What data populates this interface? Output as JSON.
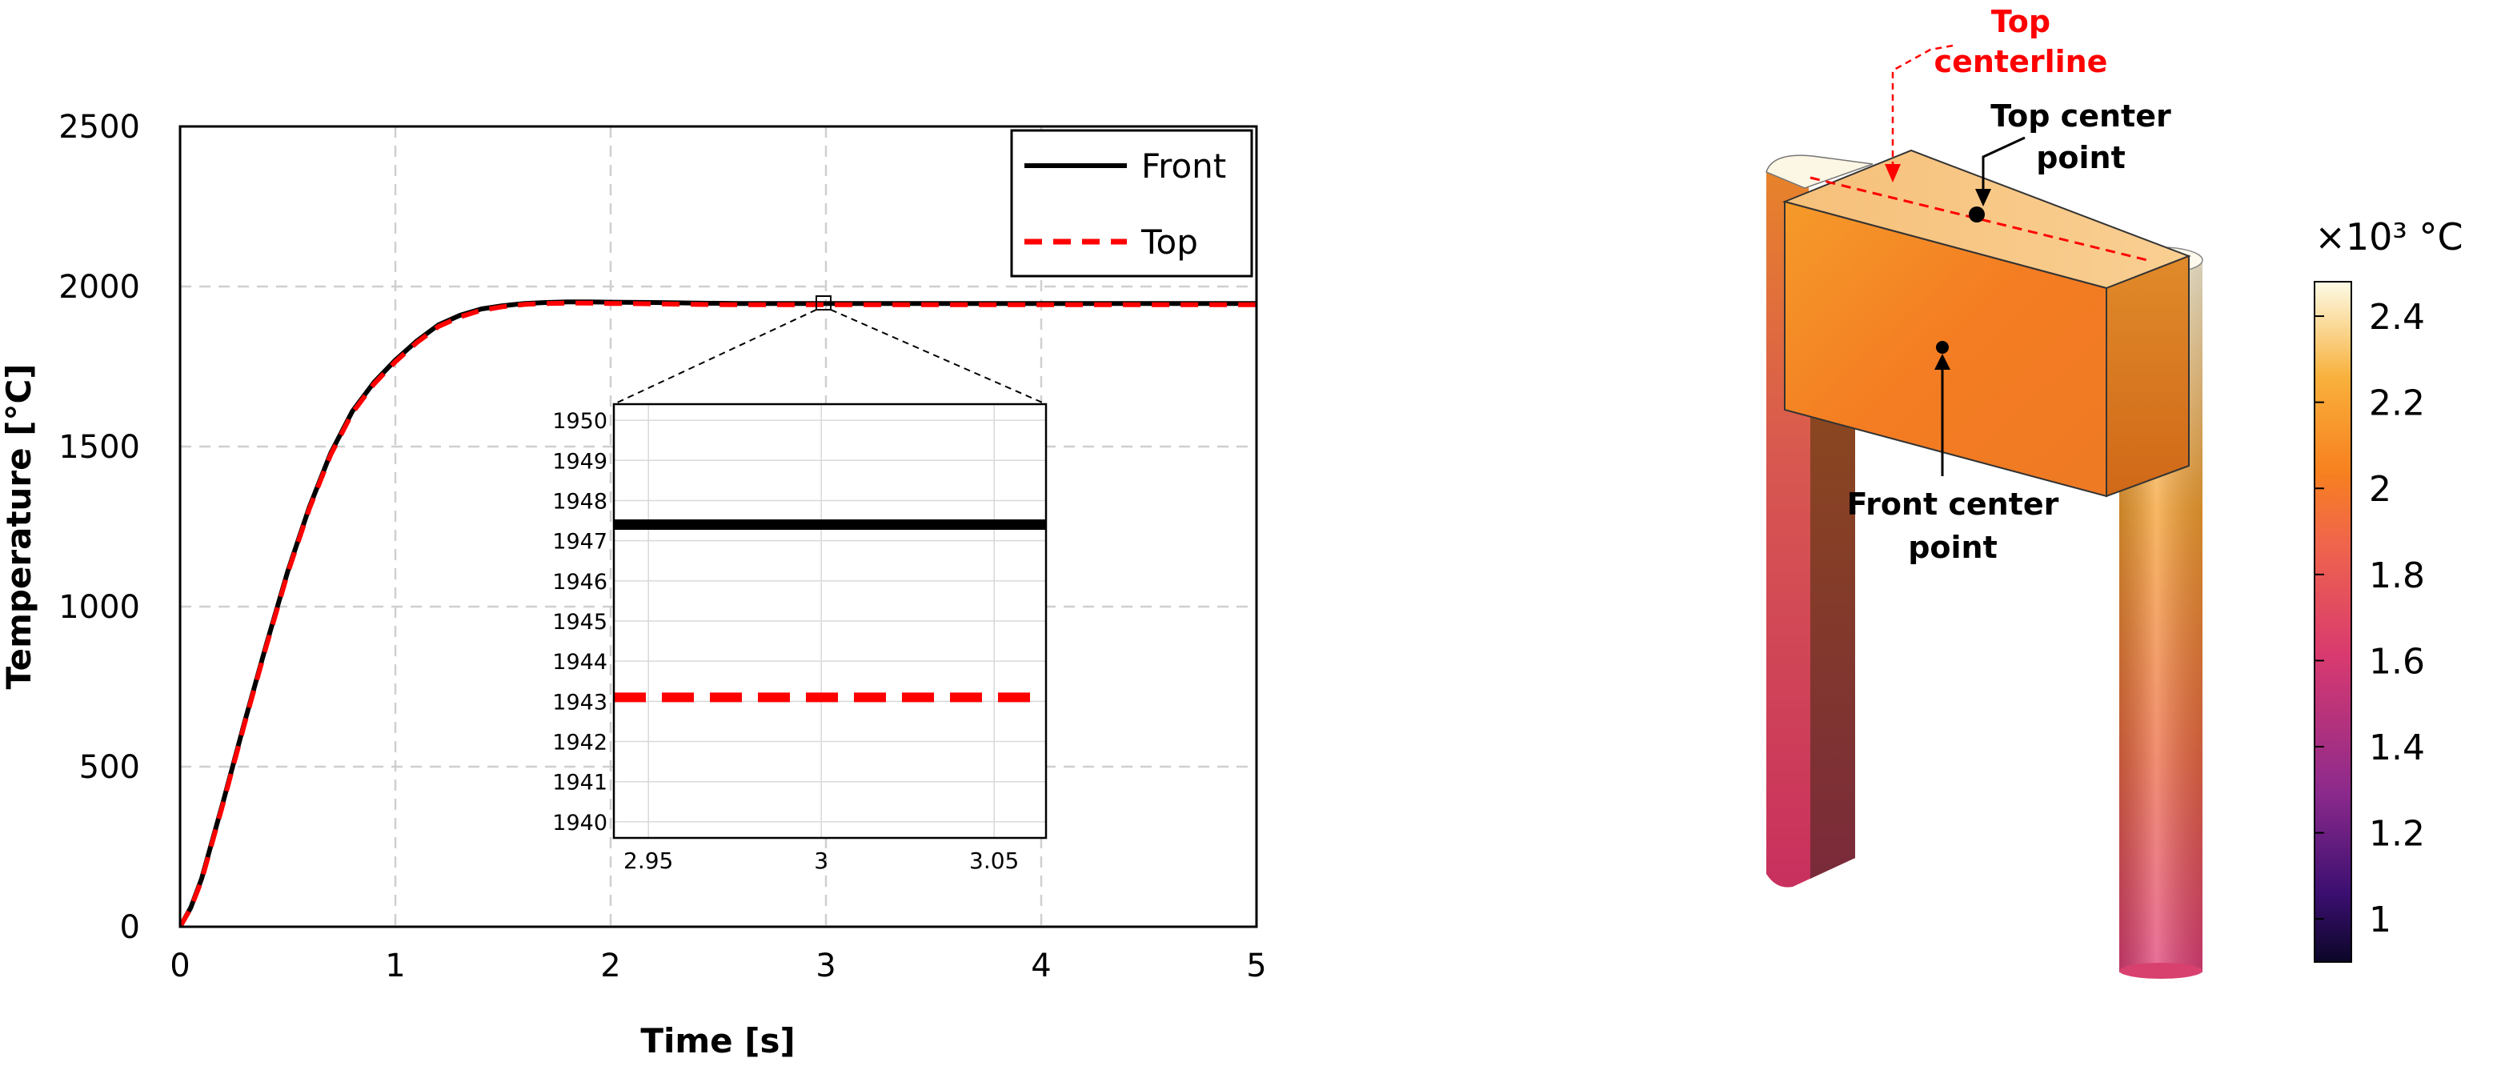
{
  "chart_data": [
    {
      "type": "line",
      "xlabel": "Time [s]",
      "ylabel": "Temperature [°C]",
      "xlim": [
        0,
        5
      ],
      "ylim": [
        0,
        2500
      ],
      "xticks": [
        0,
        1,
        2,
        3,
        4,
        5
      ],
      "yticks": [
        0,
        500,
        1000,
        1500,
        2000,
        2500
      ],
      "grid": true,
      "legend_position": "top-right",
      "series": [
        {
          "name": "Front",
          "color": "#000000",
          "style": "solid",
          "x": [
            0,
            0.05,
            0.1,
            0.2,
            0.3,
            0.4,
            0.5,
            0.6,
            0.7,
            0.8,
            0.9,
            1.0,
            1.1,
            1.2,
            1.3,
            1.4,
            1.5,
            1.6,
            1.7,
            1.8,
            1.9,
            2.0,
            2.2,
            2.4,
            2.6,
            2.8,
            3.0,
            3.5,
            4.0,
            4.5,
            5.0
          ],
          "y": [
            0,
            60,
            150,
            390,
            640,
            880,
            1110,
            1310,
            1480,
            1610,
            1700,
            1770,
            1830,
            1880,
            1910,
            1930,
            1940,
            1947,
            1950,
            1952,
            1952,
            1951,
            1950,
            1948,
            1947,
            1947,
            1947,
            1947,
            1947,
            1947,
            1947
          ]
        },
        {
          "name": "Top",
          "color": "#ff0000",
          "style": "dashed",
          "x": [
            0,
            0.05,
            0.1,
            0.2,
            0.3,
            0.4,
            0.5,
            0.6,
            0.7,
            0.8,
            0.9,
            1.0,
            1.1,
            1.2,
            1.3,
            1.4,
            1.5,
            1.6,
            1.7,
            1.8,
            1.9,
            2.0,
            2.2,
            2.4,
            2.6,
            2.8,
            3.0,
            3.5,
            4.0,
            4.5,
            5.0
          ],
          "y": [
            0,
            58,
            145,
            385,
            635,
            875,
            1105,
            1305,
            1475,
            1605,
            1695,
            1765,
            1825,
            1875,
            1905,
            1926,
            1937,
            1944,
            1947,
            1948,
            1948,
            1947,
            1946,
            1944,
            1943,
            1943,
            1943,
            1943,
            1943,
            1943,
            1943
          ]
        }
      ],
      "inset": {
        "xlim": [
          2.94,
          3.065
        ],
        "ylim": [
          1939.6,
          1950.4
        ],
        "xticks": [
          2.95,
          3,
          3.05
        ],
        "xtick_labels": [
          "2.95",
          "3",
          "3.05"
        ],
        "yticks": [
          1940,
          1941,
          1942,
          1943,
          1944,
          1945,
          1946,
          1947,
          1948,
          1949,
          1950
        ],
        "front_value": 1947.4,
        "top_value": 1943.1
      }
    },
    {
      "type": "heatmap",
      "colorbar_label": "×10³ °C",
      "colorbar_ticks": [
        "1",
        "1.2",
        "1.4",
        "1.6",
        "1.8",
        "2",
        "2.2",
        "2.4"
      ],
      "colorbar_range": [
        0.9,
        2.48
      ],
      "annotations": {
        "top_centerline": "Top centerline",
        "top_center_point": "Top center point",
        "front_center_point": "Front center point"
      }
    }
  ]
}
